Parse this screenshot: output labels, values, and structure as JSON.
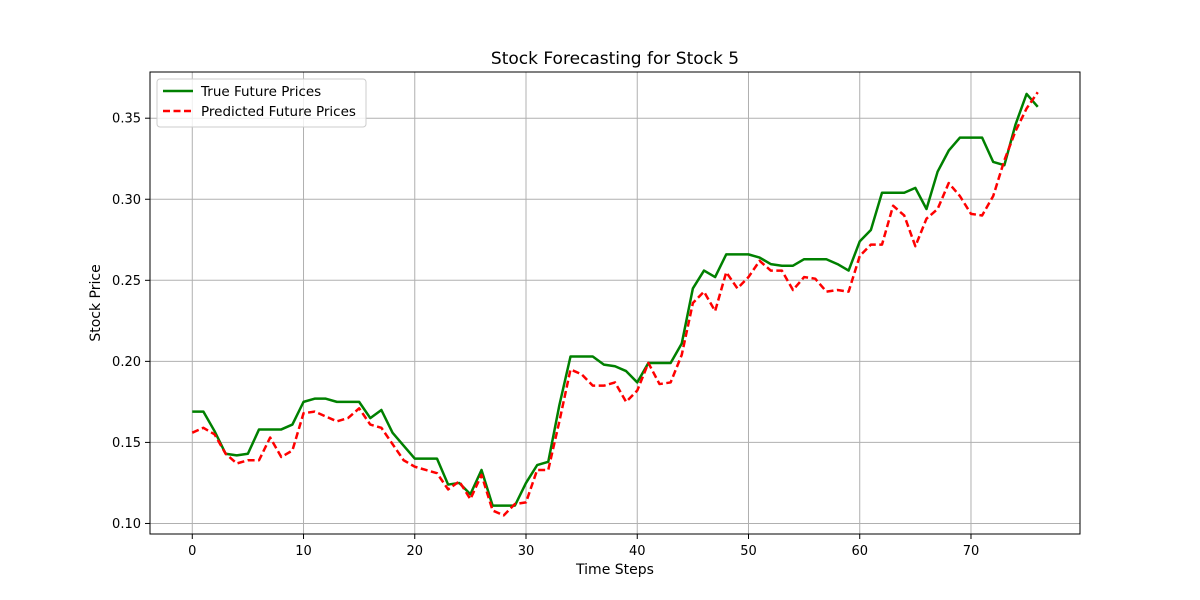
{
  "chart_data": {
    "type": "line",
    "title": "Stock Forecasting for Stock 5",
    "xlabel": "Time Steps",
    "ylabel": "Stock Price",
    "xlim": [
      -3.8,
      79.8
    ],
    "ylim": [
      0.0935,
      0.3785
    ],
    "xticks": [
      0,
      10,
      20,
      30,
      40,
      50,
      60,
      70
    ],
    "xtick_labels": [
      "0",
      "10",
      "20",
      "30",
      "40",
      "50",
      "60",
      "70"
    ],
    "yticks": [
      0.1,
      0.15,
      0.2,
      0.25,
      0.3,
      0.35
    ],
    "ytick_labels": [
      "0.10",
      "0.15",
      "0.20",
      "0.25",
      "0.30",
      "0.35"
    ],
    "grid": true,
    "legend_position": "top-left",
    "series": [
      {
        "name": "True Future Prices",
        "color": "#008000",
        "style": "solid",
        "values": [
          0.169,
          0.169,
          0.157,
          0.143,
          0.142,
          0.143,
          0.158,
          0.158,
          0.158,
          0.161,
          0.175,
          0.177,
          0.177,
          0.175,
          0.175,
          0.175,
          0.165,
          0.17,
          0.156,
          0.148,
          0.14,
          0.14,
          0.14,
          0.124,
          0.125,
          0.118,
          0.133,
          0.111,
          0.111,
          0.111,
          0.125,
          0.136,
          0.138,
          0.173,
          0.203,
          0.203,
          0.203,
          0.198,
          0.197,
          0.194,
          0.187,
          0.199,
          0.199,
          0.199,
          0.211,
          0.245,
          0.256,
          0.252,
          0.266,
          0.266,
          0.266,
          0.264,
          0.26,
          0.259,
          0.259,
          0.263,
          0.263,
          0.263,
          0.26,
          0.256,
          0.274,
          0.281,
          0.304,
          0.304,
          0.304,
          0.307,
          0.294,
          0.317,
          0.33,
          0.338,
          0.338,
          0.338,
          0.323,
          0.321,
          0.346,
          0.365,
          0.357
        ]
      },
      {
        "name": "Predicted Future Prices",
        "color": "#ff0000",
        "style": "dashed",
        "values": [
          0.156,
          0.159,
          0.155,
          0.143,
          0.137,
          0.139,
          0.139,
          0.153,
          0.141,
          0.145,
          0.168,
          0.169,
          0.166,
          0.163,
          0.165,
          0.171,
          0.161,
          0.159,
          0.149,
          0.139,
          0.135,
          0.133,
          0.131,
          0.121,
          0.126,
          0.115,
          0.13,
          0.108,
          0.105,
          0.112,
          0.113,
          0.133,
          0.133,
          0.163,
          0.195,
          0.192,
          0.185,
          0.185,
          0.187,
          0.175,
          0.182,
          0.199,
          0.186,
          0.187,
          0.204,
          0.236,
          0.243,
          0.231,
          0.255,
          0.245,
          0.252,
          0.262,
          0.256,
          0.256,
          0.244,
          0.252,
          0.251,
          0.243,
          0.244,
          0.243,
          0.265,
          0.272,
          0.272,
          0.296,
          0.29,
          0.271,
          0.288,
          0.294,
          0.31,
          0.302,
          0.291,
          0.29,
          0.302,
          0.324,
          0.342,
          0.356,
          0.366
        ]
      }
    ]
  }
}
